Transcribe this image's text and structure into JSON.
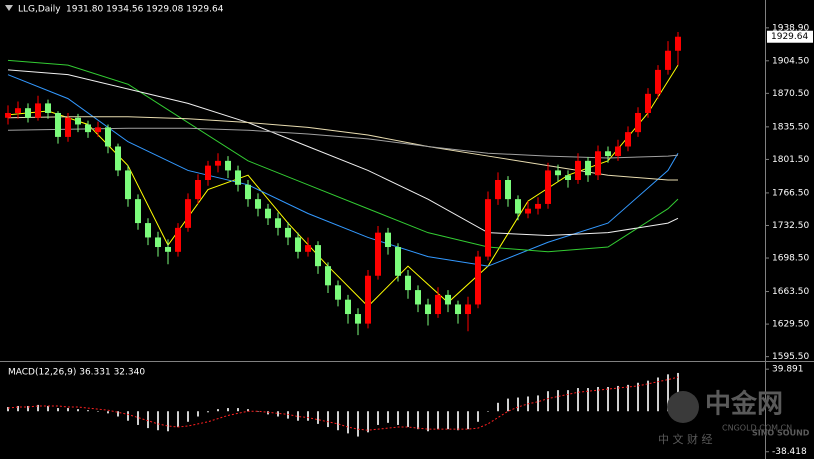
{
  "chart_data": [
    {
      "type": "candlestick",
      "title": "LLG,Daily",
      "header_values": "1931.80 1934.56 1929.08 1929.64",
      "up_color": "#ff0000",
      "down_color": "#7cfc7c",
      "ylim": [
        1592,
        1968
      ],
      "yticks": [
        {
          "value": 1938.9,
          "label": "1938.90"
        },
        {
          "value": 1904.5,
          "label": "1904.50"
        },
        {
          "value": 1870.5,
          "label": "1870.50"
        },
        {
          "value": 1835.5,
          "label": "1835.50"
        },
        {
          "value": 1801.5,
          "label": "1801.50"
        },
        {
          "value": 1766.5,
          "label": "1766.50"
        },
        {
          "value": 1732.5,
          "label": "1732.50"
        },
        {
          "value": 1698.5,
          "label": "1698.50"
        },
        {
          "value": 1663.5,
          "label": "1663.50"
        },
        {
          "value": 1629.5,
          "label": "1629.50"
        },
        {
          "value": 1595.5,
          "label": "1595.50"
        }
      ],
      "open": [
        1845,
        1850,
        1855,
        1845,
        1860,
        1850,
        1825,
        1845,
        1838,
        1830,
        1835,
        1815,
        1790,
        1760,
        1735,
        1720,
        1710,
        1705,
        1730,
        1760,
        1780,
        1795,
        1800,
        1790,
        1775,
        1760,
        1750,
        1740,
        1730,
        1720,
        1705,
        1712,
        1690,
        1670,
        1655,
        1640,
        1630,
        1680,
        1725,
        1710,
        1680,
        1665,
        1650,
        1640,
        1660,
        1650,
        1640,
        1650,
        1700,
        1760,
        1780,
        1760,
        1745,
        1750,
        1755,
        1790,
        1785,
        1780,
        1800,
        1785,
        1810,
        1805,
        1815,
        1830,
        1850,
        1870,
        1895,
        1915
      ],
      "high": [
        1858,
        1862,
        1860,
        1868,
        1864,
        1852,
        1850,
        1849,
        1842,
        1841,
        1838,
        1818,
        1795,
        1765,
        1740,
        1726,
        1718,
        1735,
        1766,
        1786,
        1800,
        1808,
        1805,
        1795,
        1780,
        1766,
        1755,
        1746,
        1736,
        1725,
        1720,
        1716,
        1694,
        1675,
        1660,
        1646,
        1686,
        1732,
        1730,
        1714,
        1686,
        1670,
        1656,
        1668,
        1665,
        1654,
        1658,
        1706,
        1768,
        1788,
        1784,
        1764,
        1758,
        1762,
        1798,
        1796,
        1790,
        1808,
        1804,
        1816,
        1815,
        1822,
        1836,
        1856,
        1876,
        1900,
        1925,
        1934.56
      ],
      "low": [
        1838,
        1844,
        1840,
        1842,
        1844,
        1818,
        1820,
        1830,
        1824,
        1825,
        1808,
        1784,
        1752,
        1728,
        1712,
        1700,
        1692,
        1700,
        1726,
        1755,
        1774,
        1788,
        1782,
        1768,
        1752,
        1742,
        1733,
        1722,
        1712,
        1698,
        1700,
        1682,
        1662,
        1648,
        1630,
        1618,
        1625,
        1676,
        1702,
        1674,
        1656,
        1642,
        1628,
        1636,
        1642,
        1630,
        1622,
        1646,
        1696,
        1754,
        1752,
        1738,
        1740,
        1744,
        1750,
        1778,
        1772,
        1776,
        1778,
        1780,
        1798,
        1800,
        1810,
        1825,
        1845,
        1865,
        1890,
        1900
      ],
      "close": [
        1850,
        1855,
        1845,
        1860,
        1850,
        1825,
        1845,
        1838,
        1830,
        1835,
        1815,
        1790,
        1760,
        1735,
        1720,
        1710,
        1705,
        1730,
        1760,
        1780,
        1795,
        1800,
        1790,
        1775,
        1760,
        1750,
        1740,
        1730,
        1720,
        1705,
        1712,
        1690,
        1670,
        1655,
        1640,
        1630,
        1680,
        1725,
        1710,
        1680,
        1665,
        1650,
        1640,
        1660,
        1650,
        1640,
        1650,
        1700,
        1760,
        1780,
        1760,
        1745,
        1750,
        1755,
        1790,
        1785,
        1780,
        1800,
        1785,
        1810,
        1805,
        1815,
        1830,
        1850,
        1870,
        1895,
        1915,
        1929.64
      ],
      "lines": [
        {
          "color": "#ffff00",
          "x": [
            0,
            4,
            8,
            12,
            16,
            20,
            24,
            28,
            32,
            36,
            40,
            44,
            48,
            52,
            56,
            60,
            64,
            67
          ],
          "values": [
            1848,
            1852,
            1838,
            1795,
            1712,
            1770,
            1785,
            1735,
            1690,
            1648,
            1690,
            1652,
            1690,
            1758,
            1785,
            1800,
            1850,
            1900
          ]
        },
        {
          "color": "#3399ff",
          "x": [
            0,
            6,
            12,
            18,
            24,
            30,
            36,
            42,
            48,
            54,
            60,
            66,
            67
          ],
          "values": [
            1890,
            1865,
            1820,
            1790,
            1775,
            1745,
            1720,
            1700,
            1690,
            1715,
            1735,
            1790,
            1808
          ]
        },
        {
          "color": "#33cc33",
          "x": [
            0,
            6,
            12,
            18,
            24,
            30,
            36,
            42,
            48,
            54,
            60,
            66,
            67
          ],
          "values": [
            1905,
            1900,
            1880,
            1840,
            1800,
            1775,
            1750,
            1725,
            1710,
            1705,
            1710,
            1750,
            1760
          ]
        },
        {
          "color": "#f0f0f0",
          "x": [
            0,
            6,
            12,
            18,
            24,
            30,
            36,
            42,
            48,
            54,
            60,
            66,
            67
          ],
          "values": [
            1895,
            1890,
            1875,
            1860,
            1840,
            1815,
            1790,
            1760,
            1725,
            1722,
            1725,
            1735,
            1740
          ]
        },
        {
          "color": "#e8dcb0",
          "x": [
            0,
            6,
            12,
            18,
            24,
            30,
            36,
            42,
            48,
            54,
            60,
            66,
            67
          ],
          "values": [
            1845,
            1846,
            1846,
            1844,
            1840,
            1835,
            1827,
            1815,
            1805,
            1795,
            1785,
            1780,
            1780
          ]
        },
        {
          "color": "#a0a0a0",
          "x": [
            0,
            6,
            12,
            18,
            24,
            30,
            36,
            42,
            48,
            54,
            60,
            66,
            67
          ],
          "values": [
            1832,
            1833,
            1834,
            1834,
            1832,
            1828,
            1823,
            1815,
            1808,
            1805,
            1803,
            1805,
            1806
          ]
        }
      ]
    },
    {
      "type": "macd",
      "title": "MACD(12,26,9) 36.331 32.340",
      "ylim": [
        -45.3,
        46.7
      ],
      "yticks": [
        39.891,
        -38.418
      ],
      "hist_color": "#d0d0d0",
      "signal_color": "#ff2020",
      "values": [
        4,
        5,
        5,
        6,
        5,
        3,
        3,
        2,
        1,
        0,
        -2,
        -5,
        -9,
        -13,
        -16,
        -18,
        -19,
        -15,
        -10,
        -5,
        -1,
        2,
        3,
        3,
        2,
        0,
        -3,
        -5,
        -7,
        -9,
        -9,
        -12,
        -15,
        -18,
        -21,
        -24,
        -20,
        -13,
        -11,
        -13,
        -15,
        -17,
        -19,
        -17,
        -17,
        -18,
        -17,
        -10,
        0,
        8,
        12,
        13,
        14,
        15,
        19,
        20,
        20,
        22,
        22,
        23,
        23,
        24,
        25,
        27,
        29,
        32,
        35,
        36.331
      ],
      "signal": [
        3,
        4,
        4,
        5,
        5,
        5,
        4,
        4,
        3,
        2,
        1,
        -1,
        -3,
        -6,
        -9,
        -12,
        -14,
        -15,
        -14,
        -12,
        -10,
        -7,
        -4,
        -2,
        0,
        0,
        -1,
        -2,
        -3,
        -5,
        -6,
        -8,
        -10,
        -12,
        -15,
        -17,
        -18,
        -17,
        -16,
        -15,
        -15,
        -16,
        -17,
        -17,
        -17,
        -17,
        -17,
        -16,
        -12,
        -6,
        0,
        4,
        7,
        9,
        12,
        14,
        16,
        18,
        19,
        20,
        21,
        22,
        23,
        24,
        26,
        28,
        30,
        32.34
      ]
    }
  ],
  "watermark": {
    "brand": "中金网",
    "site": "CNGOLD.COM.CN",
    "tagline": "中 文 财 经",
    "sound": "SINO SOUND"
  }
}
